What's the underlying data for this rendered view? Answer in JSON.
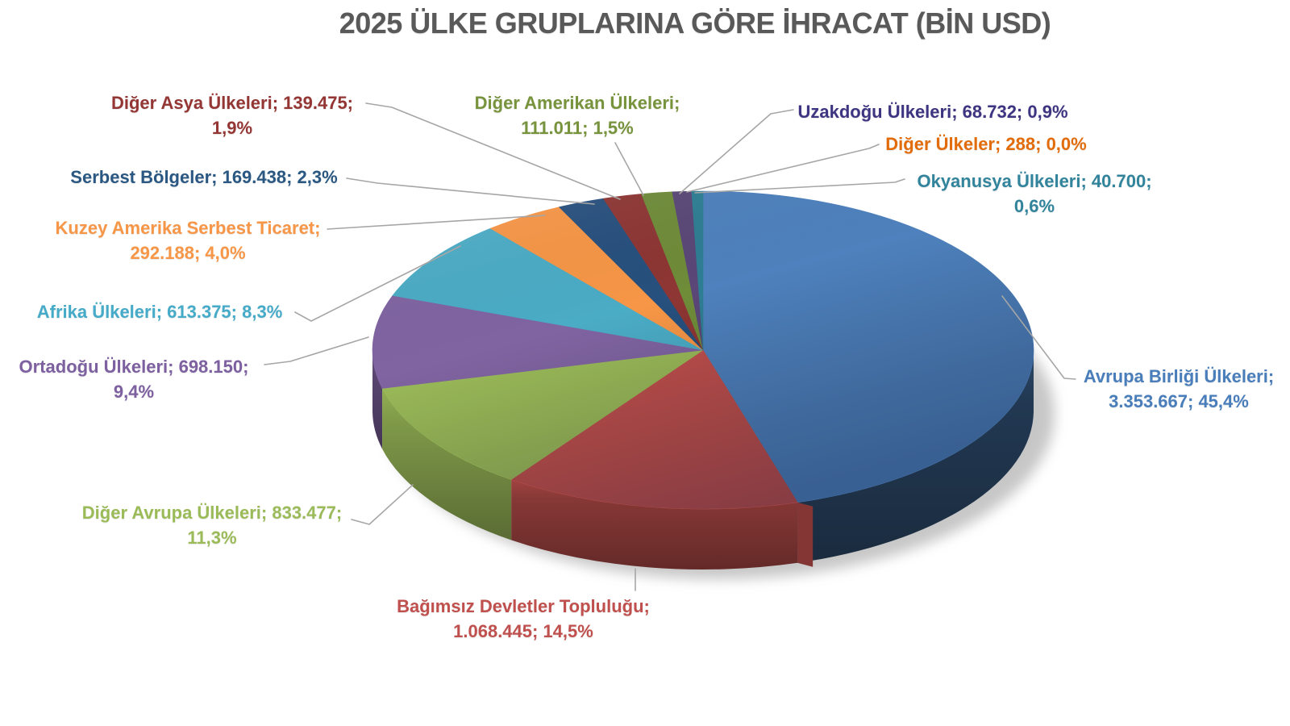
{
  "title": "2025 ÜLKE GRUPLARINA GÖRE İHRACAT (BİN USD)",
  "title_color": "#595959",
  "canvas": {
    "background": "#FFFFFF",
    "leader_line_color": "#A6A6A6"
  },
  "chart_data": {
    "type": "pie",
    "projection": "3d",
    "value_unit": "BİN USD",
    "legend_position": "data-labels-with-leader-lines",
    "slices": [
      {
        "name": "Avrupa Birliği Ülkeleri",
        "value": 3353667,
        "value_text": "3.353.667",
        "percent": 45.4,
        "percent_text": "45,4%",
        "color": "#4E81BD",
        "label_color": "#4A7EBB",
        "label_lines": [
          "Avrupa Birliği Ülkeleri;",
          "3.353.667; 45,4%"
        ]
      },
      {
        "name": "Bağımsız Devletler Topluluğu",
        "value": 1068445,
        "value_text": "1.068.445",
        "percent": 14.5,
        "percent_text": "14,5%",
        "color": "#C0504D",
        "label_color": "#C0504D",
        "label_lines": [
          "Bağımsız Devletler Topluluğu;",
          "1.068.445; 14,5%"
        ]
      },
      {
        "name": "Diğer Avrupa Ülkeleri",
        "value": 833477,
        "value_text": "833.477",
        "percent": 11.3,
        "percent_text": "11,3%",
        "color": "#9BBB59",
        "label_color": "#9BBB59",
        "label_lines": [
          "Diğer Avrupa Ülkeleri; 833.477;",
          "11,3%"
        ]
      },
      {
        "name": "Ortadoğu Ülkeleri",
        "value": 698150,
        "value_text": "698.150",
        "percent": 9.4,
        "percent_text": "9,4%",
        "color": "#8064A2",
        "label_color": "#7D60A0",
        "label_lines": [
          "Ortadoğu Ülkeleri; 698.150;",
          "9,4%"
        ]
      },
      {
        "name": "Afrika Ülkeleri",
        "value": 613375,
        "value_text": "613.375",
        "percent": 8.3,
        "percent_text": "8,3%",
        "color": "#4BACC6",
        "label_color": "#45ABC8",
        "label_lines": [
          "Afrika Ülkeleri; 613.375; 8,3%"
        ]
      },
      {
        "name": "Kuzey Amerika Serbest Ticaret",
        "value": 292188,
        "value_text": "292.188",
        "percent": 4.0,
        "percent_text": "4,0%",
        "color": "#F79646",
        "label_color": "#F79646",
        "label_lines": [
          "Kuzey Amerika Serbest Ticaret;",
          "292.188; 4,0%"
        ]
      },
      {
        "name": "Serbest Bölgeler",
        "value": 169438,
        "value_text": "169.438",
        "percent": 2.3,
        "percent_text": "2,3%",
        "color": "#27507E",
        "label_color": "#2A5882",
        "label_lines": [
          "Serbest Bölgeler; 169.438; 2,3%"
        ]
      },
      {
        "name": "Diğer Asya Ülkeleri",
        "value": 139475,
        "value_text": "139.475",
        "percent": 1.9,
        "percent_text": "1,9%",
        "color": "#8E3634",
        "label_color": "#943634",
        "label_lines": [
          "Diğer Asya Ülkeleri; 139.475;",
          "1,9%"
        ]
      },
      {
        "name": "Diğer Amerikan Ülkeleri",
        "value": 111011,
        "value_text": "111.011",
        "percent": 1.5,
        "percent_text": "1,5%",
        "color": "#6F8C39",
        "label_color": "#77933C",
        "label_lines": [
          "Diğer Amerikan Ülkeleri;",
          "111.011; 1,5%"
        ]
      },
      {
        "name": "Uzakdoğu Ülkeleri",
        "value": 68732,
        "value_text": "68.732",
        "percent": 0.9,
        "percent_text": "0,9%",
        "color": "#5A4778",
        "label_color": "#3D3581",
        "label_lines": [
          "Uzakdoğu Ülkeleri; 68.732; 0,9%"
        ]
      },
      {
        "name": "Diğer Ülkeler",
        "value": 288,
        "value_text": "288",
        "percent": 0.0,
        "percent_text": "0,0%",
        "color": "#C86211",
        "label_color": "#E36C0A",
        "label_lines": [
          "Diğer Ülkeler; 288; 0,0%"
        ]
      },
      {
        "name": "Okyanusya Ülkeleri",
        "value": 40700,
        "value_text": "40.700",
        "percent": 0.6,
        "percent_text": "0,6%",
        "color": "#2E7E93",
        "label_color": "#31849B",
        "label_lines": [
          "Okyanusya Ülkeleri; 40.700;",
          "0,6%"
        ]
      }
    ]
  }
}
